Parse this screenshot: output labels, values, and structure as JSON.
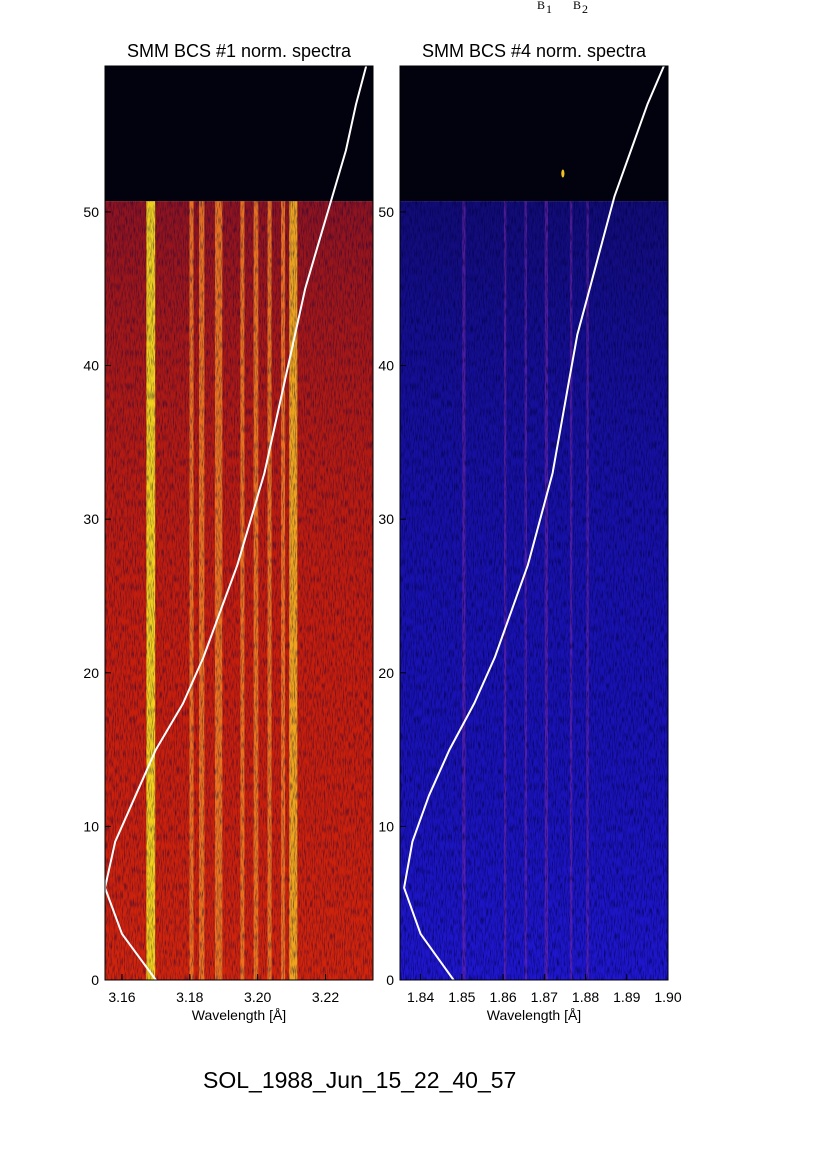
{
  "header_fragments": [
    {
      "letter": "B",
      "sub": "1"
    },
    {
      "letter": "B",
      "sub": "2"
    }
  ],
  "footer_label": "SOL_1988_Jun_15_22_40_57",
  "chart_data": [
    {
      "type": "heatmap",
      "title": "SMM BCS #1 norm. spectra",
      "xlabel": "Wavelength [Å]",
      "ylabel": "",
      "xlim": [
        3.155,
        3.234
      ],
      "ylim": [
        0,
        59.5
      ],
      "xticks": [
        3.16,
        3.18,
        3.2,
        3.22
      ],
      "xtick_labels": [
        "3.16",
        "3.18",
        "3.20",
        "3.22"
      ],
      "yticks": [
        0,
        10,
        20,
        30,
        40,
        50
      ],
      "ytick_labels": [
        "0",
        "10",
        "20",
        "30",
        "40",
        "50"
      ],
      "data_extent_y": 50.7,
      "colormap": "black-blue-red-yellow",
      "grid": false,
      "line_bands": [
        {
          "x": 3.1685,
          "width": 0.0026,
          "intensity": 1.0
        },
        {
          "x": 3.1805,
          "width": 0.0012,
          "intensity": 0.6
        },
        {
          "x": 3.1835,
          "width": 0.0016,
          "intensity": 0.62
        },
        {
          "x": 3.1885,
          "width": 0.0022,
          "intensity": 0.82
        },
        {
          "x": 3.1955,
          "width": 0.0012,
          "intensity": 0.62
        },
        {
          "x": 3.1995,
          "width": 0.0014,
          "intensity": 0.66
        },
        {
          "x": 3.2035,
          "width": 0.0012,
          "intensity": 0.6
        },
        {
          "x": 3.2075,
          "width": 0.0012,
          "intensity": 0.62
        },
        {
          "x": 3.2105,
          "width": 0.0024,
          "intensity": 0.9
        }
      ],
      "overlay_curve": {
        "color": "#ffffff",
        "y": [
          0,
          3,
          6,
          9,
          12,
          15,
          18,
          21,
          24,
          27,
          30,
          33,
          36,
          39,
          42,
          45,
          48,
          51,
          54,
          57,
          59.5
        ],
        "x": [
          3.17,
          3.16,
          3.155,
          3.158,
          3.164,
          3.17,
          3.178,
          3.184,
          3.189,
          3.194,
          3.198,
          3.202,
          3.205,
          3.208,
          3.211,
          3.214,
          3.218,
          3.222,
          3.226,
          3.229,
          3.232
        ]
      }
    },
    {
      "type": "heatmap",
      "title": "SMM BCS #4 norm. spectra",
      "xlabel": "Wavelength [Å]",
      "ylabel": "",
      "xlim": [
        1.835,
        1.9
      ],
      "ylim": [
        0,
        59.5
      ],
      "xticks": [
        1.84,
        1.85,
        1.86,
        1.87,
        1.88,
        1.89,
        1.9
      ],
      "xtick_labels": [
        "1.84",
        "1.85",
        "1.86",
        "1.87",
        "1.88",
        "1.89",
        "1.90"
      ],
      "yticks": [
        0,
        10,
        20,
        30,
        40,
        50
      ],
      "ytick_labels": [
        "0",
        "10",
        "20",
        "30",
        "40",
        "50"
      ],
      "data_extent_y": 50.7,
      "colormap": "black-blue-red-yellow",
      "grid": false,
      "line_bands": [
        {
          "x": 1.8505,
          "width": 0.0008,
          "intensity": 0.3
        },
        {
          "x": 1.8605,
          "width": 0.0006,
          "intensity": 0.22
        },
        {
          "x": 1.8655,
          "width": 0.0006,
          "intensity": 0.24
        },
        {
          "x": 1.8705,
          "width": 0.0008,
          "intensity": 0.28
        },
        {
          "x": 1.8765,
          "width": 0.0006,
          "intensity": 0.22
        },
        {
          "x": 1.8805,
          "width": 0.0006,
          "intensity": 0.22
        }
      ],
      "hot_spot": {
        "x": 1.8745,
        "y": 52.5
      },
      "overlay_curve": {
        "color": "#ffffff",
        "y": [
          0,
          3,
          6,
          9,
          12,
          15,
          18,
          21,
          24,
          27,
          30,
          33,
          36,
          39,
          42,
          45,
          48,
          51,
          54,
          57,
          59.5
        ],
        "x": [
          1.848,
          1.84,
          1.836,
          1.838,
          1.842,
          1.847,
          1.853,
          1.858,
          1.862,
          1.866,
          1.869,
          1.872,
          1.874,
          1.876,
          1.878,
          1.881,
          1.884,
          1.887,
          1.891,
          1.895,
          1.899
        ]
      }
    }
  ]
}
